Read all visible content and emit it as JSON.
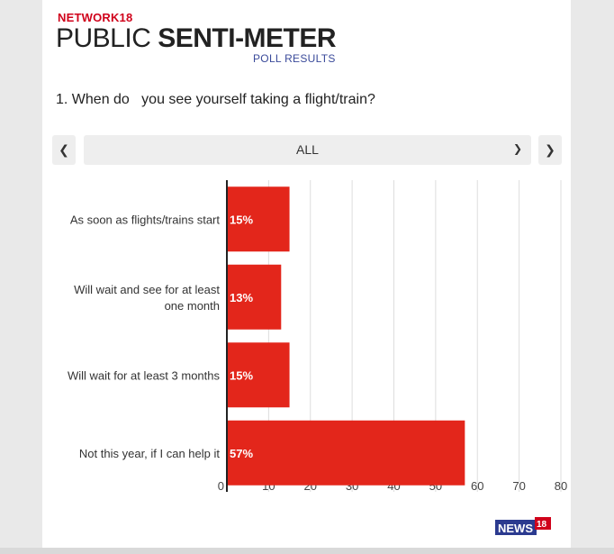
{
  "header": {
    "brand": "NETWORK18",
    "title_light": "PUBLIC ",
    "title_bold": "SENTI-METER",
    "subtitle": "POLL RESULTS"
  },
  "question": "1. When do   you see yourself taking a flight/train?",
  "filter": {
    "selected": "ALL",
    "prev_icon": "chevron-left-icon",
    "next_icon": "chevron-right-icon",
    "caret_icon": "chevron-down-icon"
  },
  "colors": {
    "bar": "#e3261b",
    "grid": "#dddddd",
    "axis": "#222222",
    "brand_red": "#d0021b"
  },
  "chart_data": {
    "type": "bar",
    "orientation": "horizontal",
    "categories": [
      [
        "As soon as flights/trains start"
      ],
      [
        "Will wait and see for at least",
        "one month"
      ],
      [
        "Will wait for at least 3 months"
      ],
      [
        "Not this year, if I can help it"
      ]
    ],
    "values": [
      15,
      13,
      15,
      57
    ],
    "data_labels": [
      "15%",
      "13%",
      "15%",
      "57%"
    ],
    "xlim": [
      0,
      80
    ],
    "xticks": [
      0,
      10,
      20,
      30,
      40,
      50,
      60,
      70,
      80
    ],
    "grid": true
  },
  "footer": {
    "logo_text": "NEWS",
    "logo_number": "18"
  }
}
